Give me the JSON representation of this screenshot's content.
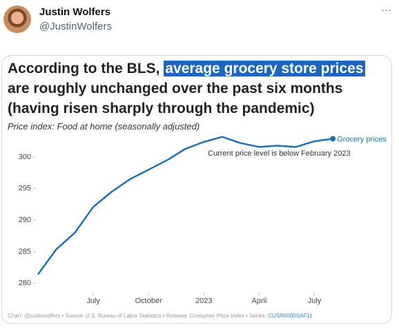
{
  "tweet": {
    "name": "Justin Wolfers",
    "handle": "@JustinWolfers",
    "menu": "···"
  },
  "chart_data": {
    "type": "line",
    "title_parts": [
      "According to the BLS,",
      "average grocery store prices",
      "are roughly unchanged over the past six months",
      "(having risen sharply through the pandemic)"
    ],
    "subtitle": "Price index: Food at home (seasonally adjusted)",
    "annotation": "Current price level is below February 2023",
    "footer": "Chart: @justinwolfers • Source: U.S. Bureau of Labor Statistics • Release: Consumer Price Index • Series:",
    "series_id": "CUSR0000SAF11",
    "categories": [
      null,
      null,
      null,
      "July",
      null,
      null,
      "October",
      null,
      null,
      "2023",
      null,
      null,
      "April",
      null,
      null,
      "July",
      null
    ],
    "series": [
      {
        "name": "Grocery prices",
        "color": "#1f6fb5",
        "values": [
          281.4,
          285.4,
          288.0,
          292.1,
          294.5,
          296.5,
          298.0,
          299.5,
          301.3,
          302.4,
          303.2,
          302.2,
          301.6,
          301.8,
          301.6,
          302.5,
          302.9
        ]
      }
    ],
    "ylim": [
      278.5,
      303.6
    ],
    "yticks": [
      280,
      285,
      290,
      295,
      300
    ],
    "grid": false
  }
}
